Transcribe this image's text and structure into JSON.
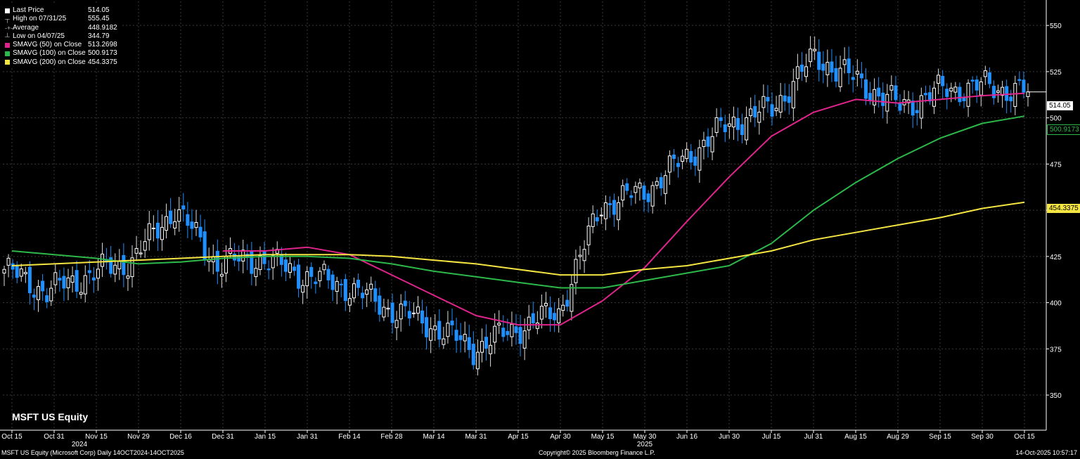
{
  "legend": {
    "last_price": {
      "label": "Last Price",
      "value": "514.05"
    },
    "high": {
      "label": "High on 07/31/25",
      "value": "555.45"
    },
    "average": {
      "label": "Average",
      "value": "448.9182"
    },
    "low": {
      "label": "Low on 04/07/25",
      "value": "344.79"
    },
    "sma50": {
      "label": "SMAVG (50)  on Close",
      "value": "513.2698",
      "color": "#e0248c"
    },
    "sma100": {
      "label": "SMAVG (100)  on Close",
      "value": "500.9173",
      "color": "#2db84a"
    },
    "sma200": {
      "label": "SMAVG (200)  on Close",
      "value": "454.3375",
      "color": "#f4e542"
    }
  },
  "ticker": "MSFT US Equity",
  "footer": {
    "left": "MSFT US Equity (Microsoft Corp) Daily 14OCT2024-14OCT2025",
    "center": "Copyright© 2025 Bloomberg Finance L.P.",
    "right": "14-Oct-2025 10:57:17"
  },
  "price_tags": {
    "last": "514.05",
    "sma100": "500.9173",
    "sma200": "454.3375"
  },
  "colors": {
    "up_candle": "#ffffff",
    "down_candle": "#1e90ff",
    "sma50": "#e0248c",
    "sma100": "#2db84a",
    "sma200": "#f4e542",
    "grid": "#3a3a3a"
  },
  "chart_data": {
    "type": "candlestick",
    "title": "MSFT US Equity",
    "ylim": [
      331,
      563
    ],
    "y_ticks": [
      350,
      375,
      400,
      425,
      450,
      475,
      500,
      525,
      550
    ],
    "x_ticks": [
      "Oct 15",
      "Oct 31",
      "Nov 15",
      "Nov 29",
      "Dec 16",
      "Dec 31",
      "Jan 15",
      "Jan 31",
      "Feb 14",
      "Feb 28",
      "Mar 14",
      "Mar 31",
      "Apr 15",
      "Apr 30",
      "May 15",
      "May 30",
      "Jun 16",
      "Jun 30",
      "Jul 15",
      "Jul 31",
      "Aug 15",
      "Aug 29",
      "Sep 15",
      "Sep 30",
      "Oct 15"
    ],
    "year_labels": [
      {
        "label": "2024",
        "under": "Nov 15"
      },
      {
        "label": "2025",
        "under": "May 30"
      }
    ],
    "close_series": [
      {
        "date": "Oct 15",
        "value": 418
      },
      {
        "date": "Oct 31",
        "value": 406
      },
      {
        "date": "Nov 15",
        "value": 415
      },
      {
        "date": "Nov 29",
        "value": 423
      },
      {
        "date": "Dec 16",
        "value": 451
      },
      {
        "date": "Dec 31",
        "value": 421
      },
      {
        "date": "Jan 15",
        "value": 424
      },
      {
        "date": "Jan 31",
        "value": 415
      },
      {
        "date": "Feb 14",
        "value": 409
      },
      {
        "date": "Feb 28",
        "value": 397
      },
      {
        "date": "Mar 14",
        "value": 388
      },
      {
        "date": "Mar 31",
        "value": 375
      },
      {
        "date": "Apr 15",
        "value": 386
      },
      {
        "date": "Apr 30",
        "value": 395
      },
      {
        "date": "May 15",
        "value": 453
      },
      {
        "date": "May 30",
        "value": 460
      },
      {
        "date": "Jun 16",
        "value": 479
      },
      {
        "date": "Jun 30",
        "value": 497
      },
      {
        "date": "Jul 15",
        "value": 505
      },
      {
        "date": "Jul 31",
        "value": 533
      },
      {
        "date": "Aug 15",
        "value": 520
      },
      {
        "date": "Aug 29",
        "value": 506
      },
      {
        "date": "Sep 15",
        "value": 515
      },
      {
        "date": "Sep 30",
        "value": 517
      },
      {
        "date": "Oct 14",
        "value": 514.05
      }
    ],
    "series": [
      {
        "name": "SMAVG (50)  on Close",
        "values": [
          null,
          null,
          null,
          null,
          null,
          428,
          428,
          430,
          426,
          415,
          404,
          393,
          388,
          388,
          401,
          419,
          444,
          468,
          490,
          503,
          510,
          508,
          510,
          512,
          513.27
        ]
      },
      {
        "name": "SMAVG (100)  on Close",
        "values": [
          428,
          426,
          424,
          421,
          422,
          424,
          425,
          425,
          424,
          421,
          417,
          414,
          411,
          408,
          408,
          412,
          416,
          420,
          432,
          450,
          465,
          478,
          489,
          497,
          500.92
        ]
      },
      {
        "name": "SMAVG (200)  on Close",
        "values": [
          420,
          421,
          422,
          423,
          424,
          425,
          426,
          426,
          426,
          425,
          423,
          421,
          418,
          415,
          415,
          418,
          420,
          424,
          428,
          434,
          438,
          442,
          446,
          451,
          454.34
        ]
      }
    ]
  }
}
